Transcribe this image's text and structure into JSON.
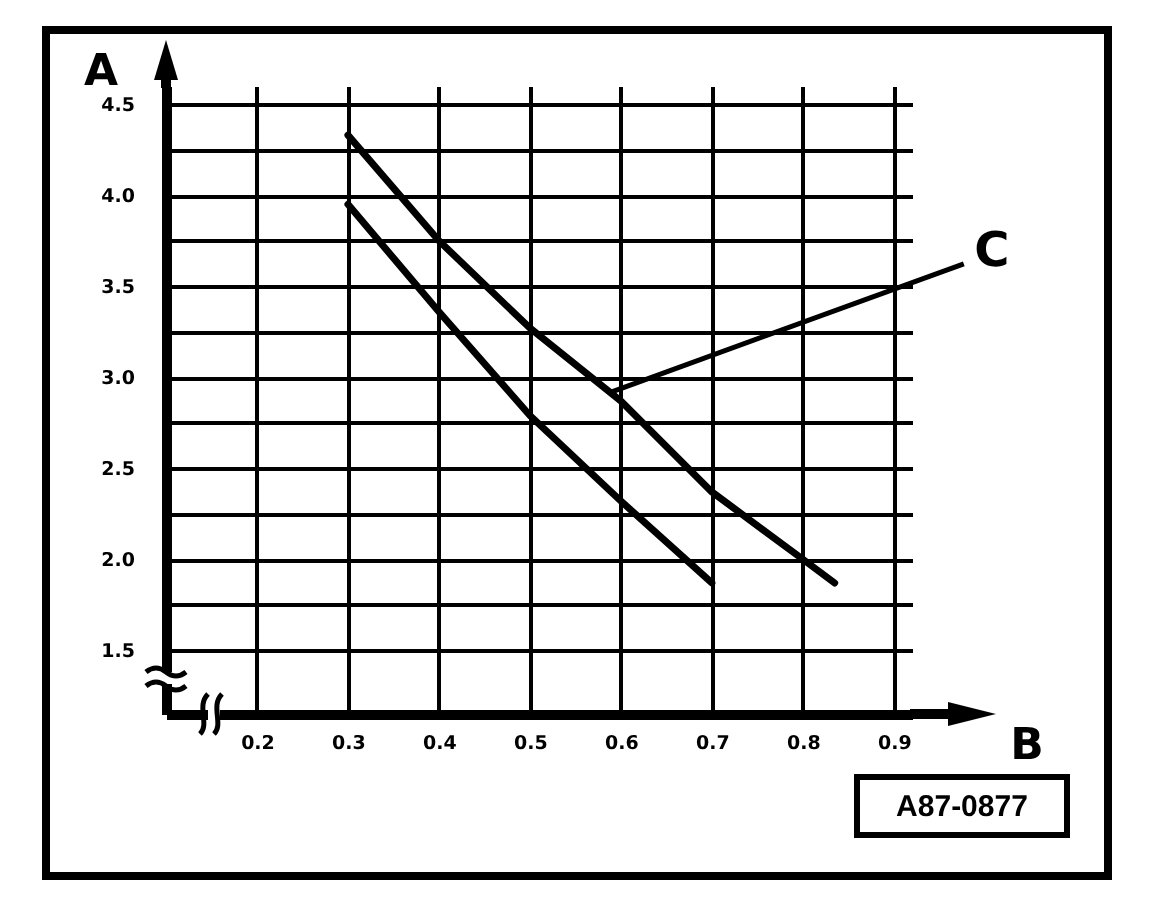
{
  "chart_data": {
    "type": "line",
    "xlabel": "B",
    "ylabel": "A",
    "xlim": [
      0.1,
      0.92
    ],
    "ylim": [
      1.15,
      4.6
    ],
    "xticks": [
      0.2,
      0.3,
      0.4,
      0.5,
      0.6,
      0.7,
      0.8,
      0.9
    ],
    "yticks": [
      1.5,
      {
        "value": 1.75,
        "label": null
      },
      {
        "value": 2,
        "label": "2.0"
      },
      {
        "value": 2.25,
        "label": null
      },
      2.5,
      {
        "value": 2.75,
        "label": null
      },
      {
        "value": 3,
        "label": "3.0"
      },
      {
        "value": 3.25,
        "label": null
      },
      3.5,
      {
        "value": 3.75,
        "label": null
      },
      {
        "value": 4,
        "label": "4.0"
      },
      {
        "value": 4.25,
        "label": null
      },
      4.5
    ],
    "grid": true,
    "marker": "none",
    "line_style": "solid",
    "series": [
      {
        "color": "#000000",
        "x": [
          0.3,
          0.4,
          0.5,
          0.6,
          0.7,
          0.8,
          0.835
        ],
        "values": [
          4.33,
          3.75,
          3.27,
          2.87,
          2.37,
          2.0,
          1.87
        ]
      },
      {
        "color": "#000000",
        "x": [
          0.3,
          0.4,
          0.5,
          0.6,
          0.7
        ],
        "values": [
          3.95,
          3.36,
          2.79,
          2.32,
          1.87
        ]
      }
    ],
    "annotations": [
      {
        "text": "C",
        "x": 0.59,
        "y": 2.92
      },
      "A87-0877"
    ]
  }
}
